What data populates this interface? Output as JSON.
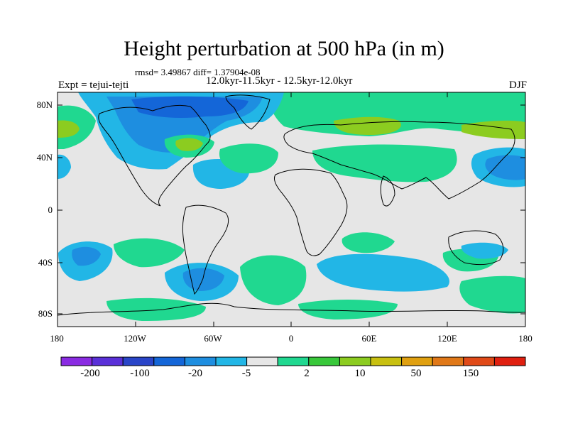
{
  "title": "Height perturbation at 500 hPa (in m)",
  "stats_line": "rmsd= 3.49867 diff= 1.37904e-08",
  "period_line": "12.0kyr-11.5kyr - 12.5kyr-12.0kyr",
  "experiment": "Expt = tejui-tejti",
  "season": "DJF",
  "lat_ticks": [
    "80N",
    "40N",
    "0",
    "40S",
    "80S"
  ],
  "lon_ticks": [
    "180",
    "120W",
    "60W",
    "0",
    "60E",
    "120E",
    "180"
  ],
  "colorbar": {
    "labels": [
      "-200",
      "-100",
      "-20",
      "-5",
      "2",
      "10",
      "50",
      "150"
    ],
    "colors": [
      "#8a2be2",
      "#5a30d8",
      "#2a45c8",
      "#1466d8",
      "#1e8ee0",
      "#22b6e6",
      "#e6e6e6",
      "#20d890",
      "#38c83a",
      "#8ccc20",
      "#c8c010",
      "#e0a010",
      "#e07818",
      "#e04a18",
      "#e02010"
    ]
  },
  "fills": {
    "background": "#e6e6e6",
    "light_blue": "#22b6e6",
    "mid_blue": "#1e8ee0",
    "dark_blue": "#1466d8",
    "green": "#20d890",
    "yellow_green": "#8ccc20",
    "frame": "#000000"
  }
}
